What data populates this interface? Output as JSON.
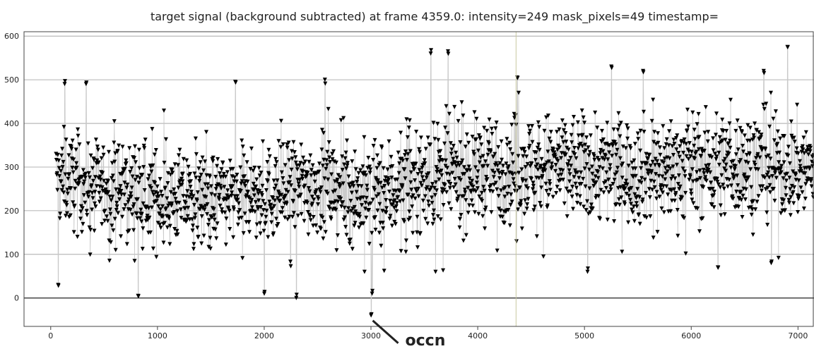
{
  "chart_data": {
    "type": "scatter",
    "title": "target signal (background subtracted) at frame 4359.0: intensity=249 mask_pixels=49 timestamp=",
    "xlabel": "",
    "ylabel": "",
    "xlim": [
      -250,
      7150
    ],
    "ylim": [
      -65,
      610
    ],
    "xticks": [
      0,
      1000,
      2000,
      3000,
      4000,
      5000,
      6000,
      7000
    ],
    "yticks": [
      0,
      100,
      200,
      300,
      400,
      500,
      600
    ],
    "grid": true,
    "zero_line": 0,
    "cursor_frame": 4359.0,
    "marker": "down-triangle",
    "line_color": "#c8c8c8",
    "marker_color": "#000000",
    "cursor_color": "#c8c8a0",
    "annotation": {
      "text": "occn",
      "x": 3030,
      "y": -55
    },
    "series": [
      {
        "trend_x": [
          0,
          500,
          1000,
          1500,
          2000,
          2500,
          3000,
          3500,
          4000,
          4500,
          5000,
          5500,
          6000,
          6500,
          7000
        ],
        "trend_y": [
          280,
          250,
          230,
          225,
          235,
          260,
          230,
          270,
          290,
          300,
          300,
          290,
          300,
          305,
          295
        ],
        "spread": [
          75,
          75,
          75,
          75,
          75,
          80,
          85,
          85,
          85,
          85,
          85,
          85,
          85,
          85,
          85
        ],
        "n_points": 2200,
        "low_excursions": [
          {
            "x": 70,
            "y": 30
          },
          {
            "x": 820,
            "y": 5
          },
          {
            "x": 2000,
            "y": 10
          },
          {
            "x": 2300,
            "y": 0
          },
          {
            "x": 3000,
            "y": -40
          },
          {
            "x": 3010,
            "y": 10
          },
          {
            "x": 5030,
            "y": 60
          },
          {
            "x": 6250,
            "y": 70
          },
          {
            "x": 6750,
            "y": 80
          }
        ],
        "high_excursions": [
          {
            "x": 130,
            "y": 490
          },
          {
            "x": 330,
            "y": 490
          },
          {
            "x": 1730,
            "y": 495
          },
          {
            "x": 2570,
            "y": 500
          },
          {
            "x": 3560,
            "y": 560
          },
          {
            "x": 3720,
            "y": 565
          },
          {
            "x": 4370,
            "y": 505
          },
          {
            "x": 5250,
            "y": 530
          },
          {
            "x": 5550,
            "y": 520
          },
          {
            "x": 6680,
            "y": 520
          },
          {
            "x": 6900,
            "y": 575
          }
        ]
      }
    ]
  }
}
